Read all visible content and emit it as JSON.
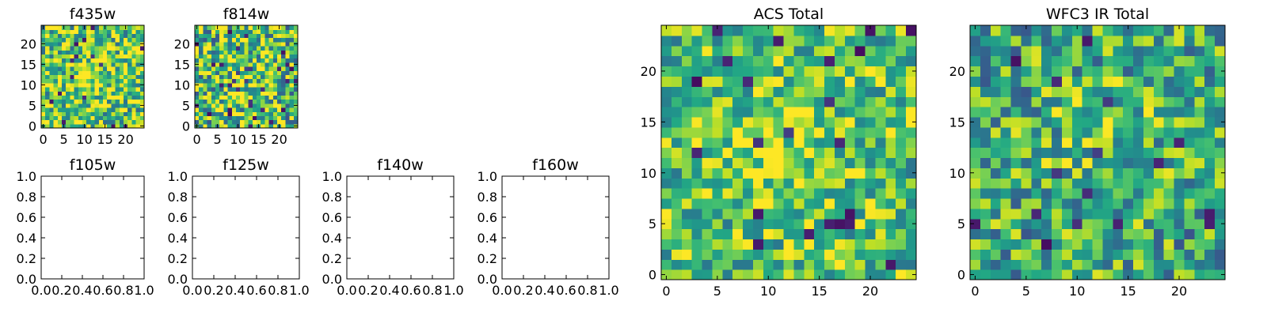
{
  "colormap": "viridis",
  "colors": {
    "frame": "#000000",
    "background": "#ffffff"
  },
  "chart_data": [
    {
      "id": "f435w",
      "type": "heatmap",
      "title": "f435w",
      "grid_size": 25,
      "xticks": [
        0,
        5,
        10,
        15,
        20
      ],
      "yticks": [
        0,
        5,
        10,
        15,
        20
      ],
      "grid": false,
      "seed": 435,
      "noise": 0.38,
      "bright_bias": 0.72
    },
    {
      "id": "f814w",
      "type": "heatmap",
      "title": "f814w",
      "grid_size": 25,
      "xticks": [
        0,
        5,
        10,
        15,
        20
      ],
      "yticks": [
        0,
        5,
        10,
        15,
        20
      ],
      "grid": false,
      "seed": 814,
      "noise": 0.42,
      "bright_bias": 0.68
    },
    {
      "id": "f105w",
      "type": "empty",
      "title": "f105w",
      "xlim": [
        0,
        1
      ],
      "ylim": [
        0,
        1
      ],
      "xticks": [
        "0.0",
        "0.2",
        "0.4",
        "0.6",
        "0.8",
        "1.0"
      ],
      "yticks": [
        "0.0",
        "0.2",
        "0.4",
        "0.6",
        "0.8",
        "1.0"
      ]
    },
    {
      "id": "f125w",
      "type": "empty",
      "title": "f125w",
      "xlim": [
        0,
        1
      ],
      "ylim": [
        0,
        1
      ],
      "xticks": [
        "0.0",
        "0.2",
        "0.4",
        "0.6",
        "0.8",
        "1.0"
      ],
      "yticks": [
        "0.0",
        "0.2",
        "0.4",
        "0.6",
        "0.8",
        "1.0"
      ]
    },
    {
      "id": "f140w",
      "type": "empty",
      "title": "f140w",
      "xlim": [
        0,
        1
      ],
      "ylim": [
        0,
        1
      ],
      "xticks": [
        "0.0",
        "0.2",
        "0.4",
        "0.6",
        "0.8",
        "1.0"
      ],
      "yticks": [
        "0.0",
        "0.2",
        "0.4",
        "0.6",
        "0.8",
        "1.0"
      ]
    },
    {
      "id": "f160w",
      "type": "empty",
      "title": "f160w",
      "xlim": [
        0,
        1
      ],
      "ylim": [
        0,
        1
      ],
      "xticks": [
        "0.0",
        "0.2",
        "0.4",
        "0.6",
        "0.8",
        "1.0"
      ],
      "yticks": [
        "0.0",
        "0.2",
        "0.4",
        "0.6",
        "0.8",
        "1.0"
      ]
    },
    {
      "id": "acs-total",
      "type": "heatmap",
      "title": "ACS Total",
      "grid_size": 25,
      "xticks": [
        0,
        5,
        10,
        15,
        20
      ],
      "yticks": [
        0,
        5,
        10,
        15,
        20
      ],
      "grid": false,
      "seed": 1234,
      "noise": 0.32,
      "bright_bias": 0.7
    },
    {
      "id": "wfc3-ir-total",
      "type": "heatmap",
      "title": "WFC3 IR Total",
      "grid_size": 25,
      "xticks": [
        0,
        5,
        10,
        15,
        20
      ],
      "yticks": [
        0,
        5,
        10,
        15,
        20
      ],
      "grid": false,
      "seed": 3160,
      "noise": 0.35,
      "bright_bias": 0.6
    }
  ]
}
